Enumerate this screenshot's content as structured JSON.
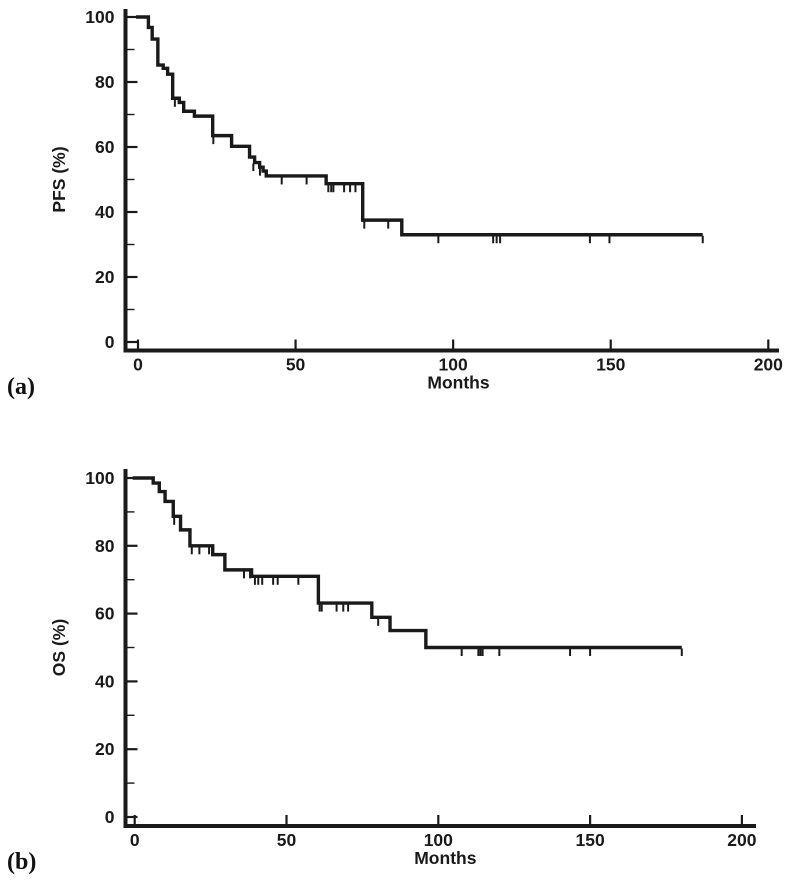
{
  "figure": {
    "background_color": "#ffffff",
    "line_color": "#1a1a1a",
    "panels": [
      {
        "label": "(a)"
      },
      {
        "label": "(b)"
      }
    ]
  },
  "chart_data": [
    {
      "type": "line",
      "subtype": "kaplan-meier-step",
      "panel_label": "(a)",
      "title": "",
      "xlabel": "Months",
      "ylabel": "PFS (%)",
      "xlim": [
        0,
        200
      ],
      "ylim": [
        0,
        100
      ],
      "x_ticks": [
        0,
        50,
        100,
        150,
        200
      ],
      "y_ticks": [
        0,
        20,
        40,
        60,
        80,
        100
      ],
      "y_minor_ticks": [
        10,
        30,
        50,
        70,
        90
      ],
      "grid": false,
      "legend": null,
      "line_color": "#1a1a1a",
      "steps": [
        [
          0,
          100
        ],
        [
          3.3,
          96.8
        ],
        [
          4.5,
          93.2
        ],
        [
          6.3,
          85.2
        ],
        [
          8,
          84.2
        ],
        [
          9.4,
          82.4
        ],
        [
          11,
          75
        ],
        [
          13.1,
          73.7
        ],
        [
          14.5,
          71
        ],
        [
          17.9,
          69.5
        ],
        [
          23.7,
          63.5
        ],
        [
          29.7,
          60.2
        ],
        [
          35.4,
          56.9
        ],
        [
          37,
          55.2
        ],
        [
          38.6,
          53.8
        ],
        [
          39.7,
          52.6
        ],
        [
          40.7,
          51.1
        ],
        [
          59.7,
          48.7
        ],
        [
          71.3,
          37.5
        ],
        [
          83.7,
          33
        ]
      ],
      "end_time": 179.2,
      "censor_marks": [
        [
          11.7,
          75
        ],
        [
          23.9,
          63.5
        ],
        [
          36.6,
          55.2
        ],
        [
          38.7,
          53.8
        ],
        [
          45.6,
          51.1
        ],
        [
          53.5,
          51.1
        ],
        [
          60.4,
          48.7
        ],
        [
          61.3,
          48.7
        ],
        [
          62,
          48.7
        ],
        [
          65.4,
          48.7
        ],
        [
          67.3,
          48.7
        ],
        [
          69,
          48.7
        ],
        [
          71.8,
          37.5
        ],
        [
          79.4,
          37.5
        ],
        [
          95.3,
          33
        ],
        [
          112.7,
          33
        ],
        [
          113.8,
          33
        ],
        [
          114.9,
          33
        ],
        [
          143.4,
          33
        ],
        [
          149.6,
          33
        ],
        [
          179.2,
          33
        ]
      ]
    },
    {
      "type": "line",
      "subtype": "kaplan-meier-step",
      "panel_label": "(b)",
      "title": "",
      "xlabel": "Months",
      "ylabel": "OS (%)",
      "xlim": [
        0,
        200
      ],
      "ylim": [
        0,
        100
      ],
      "x_ticks": [
        0,
        50,
        100,
        150,
        200
      ],
      "y_ticks": [
        0,
        20,
        40,
        60,
        80,
        100
      ],
      "y_minor_ticks": [
        10,
        30,
        50,
        70,
        90
      ],
      "grid": false,
      "legend": null,
      "line_color": "#1a1a1a",
      "steps": [
        [
          0,
          100
        ],
        [
          6.1,
          98.5
        ],
        [
          8.1,
          96
        ],
        [
          10,
          93.1
        ],
        [
          12.7,
          88.7
        ],
        [
          15.1,
          84.7
        ],
        [
          18.2,
          80
        ],
        [
          25.7,
          77.4
        ],
        [
          29.7,
          72.9
        ],
        [
          38.5,
          71
        ],
        [
          60.5,
          63.1
        ],
        [
          78.1,
          58.9
        ],
        [
          84.1,
          55
        ],
        [
          95.9,
          50
        ]
      ],
      "end_time": 180.2,
      "censor_marks": [
        [
          13,
          88.7
        ],
        [
          18.8,
          80
        ],
        [
          21.3,
          80
        ],
        [
          24.5,
          80
        ],
        [
          36,
          72.9
        ],
        [
          38,
          72.9
        ],
        [
          39.6,
          71
        ],
        [
          40.7,
          71
        ],
        [
          42,
          71
        ],
        [
          45.6,
          71
        ],
        [
          47.1,
          71
        ],
        [
          53.9,
          71
        ],
        [
          60.9,
          63.1
        ],
        [
          61.6,
          63.1
        ],
        [
          66.5,
          63.1
        ],
        [
          68.7,
          63.1
        ],
        [
          70.3,
          63.1
        ],
        [
          80.2,
          58.9
        ],
        [
          107.7,
          50
        ],
        [
          113.2,
          50
        ],
        [
          113.9,
          50
        ],
        [
          114.6,
          50
        ],
        [
          120.1,
          50
        ],
        [
          143.4,
          50
        ],
        [
          150,
          50
        ],
        [
          180.2,
          50
        ]
      ]
    }
  ]
}
